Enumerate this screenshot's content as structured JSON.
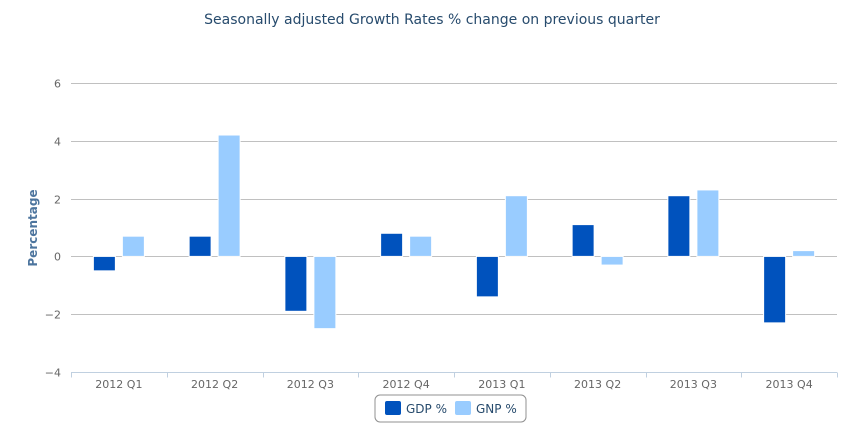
{
  "chart_data": {
    "type": "bar",
    "title": "Seasonally adjusted Growth Rates % change on previous quarter",
    "xlabel": "",
    "ylabel": "Percentage",
    "ylim": [
      -4,
      6
    ],
    "yticks": [
      6,
      4,
      2,
      0,
      -2,
      -4
    ],
    "ytick_labels": [
      "6",
      "4",
      "2",
      "0",
      "−2",
      "−4"
    ],
    "grid": true,
    "legend_position": "bottom-center",
    "categories": [
      "2012 Q1",
      "2012 Q2",
      "2012 Q3",
      "2012 Q4",
      "2013 Q1",
      "2013 Q2",
      "2013 Q3",
      "2013 Q4"
    ],
    "series": [
      {
        "name": "GDP %",
        "color": "#0052bd",
        "values": [
          -0.5,
          0.7,
          -1.9,
          0.8,
          -1.4,
          1.1,
          2.1,
          -2.3
        ]
      },
      {
        "name": "GNP %",
        "color": "#99ccff",
        "values": [
          0.7,
          4.2,
          -2.5,
          0.7,
          2.1,
          -0.3,
          2.3,
          0.2
        ]
      }
    ]
  }
}
